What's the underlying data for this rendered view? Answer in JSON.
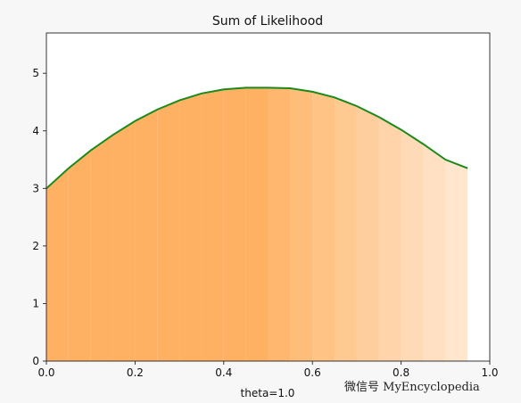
{
  "chart_data": {
    "type": "area",
    "title": "Sum of Likelihood",
    "xlabel": "theta=1.0",
    "ylabel": "",
    "xlim": [
      0.0,
      1.0
    ],
    "ylim": [
      0,
      5.7
    ],
    "xticks": [
      "0.0",
      "0.2",
      "0.4",
      "0.6",
      "0.8",
      "1.0"
    ],
    "yticks": [
      "0",
      "1",
      "2",
      "3",
      "4",
      "5"
    ],
    "grid": false,
    "legend": "none",
    "series": [
      {
        "x": [
          0.0,
          0.05,
          0.1,
          0.15,
          0.2,
          0.25,
          0.3,
          0.35,
          0.4,
          0.45,
          0.5,
          0.55,
          0.6,
          0.65,
          0.7,
          0.75,
          0.8,
          0.85,
          0.9,
          0.95
        ],
        "y": [
          3.0,
          3.35,
          3.66,
          3.93,
          4.17,
          4.37,
          4.53,
          4.65,
          4.72,
          4.75,
          4.75,
          4.74,
          4.68,
          4.58,
          4.43,
          4.24,
          4.02,
          3.77,
          3.5,
          3.35
        ]
      }
    ],
    "line_color": "#1a8a1a",
    "fill_color": "#ffa64d"
  },
  "watermark": "微信号 MyEncyclopedia"
}
